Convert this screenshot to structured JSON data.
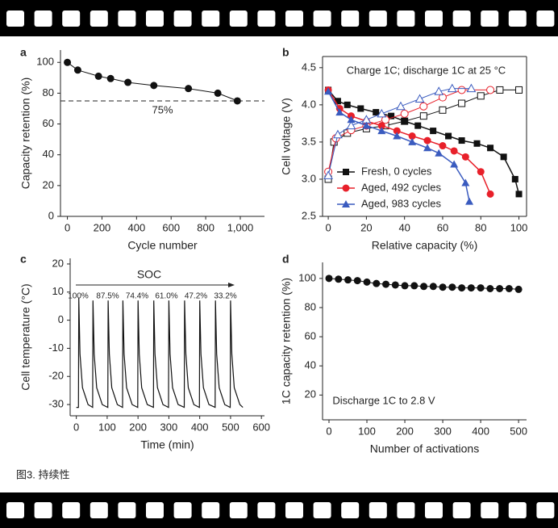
{
  "caption": "图3. 持续性",
  "chart_data": [
    {
      "type": "line",
      "label": "a",
      "xlabel": "Cycle number",
      "ylabel": "Capacity retention (%)",
      "x": [
        0,
        60,
        180,
        250,
        350,
        500,
        700,
        870,
        983
      ],
      "values": [
        100,
        95,
        91,
        89.5,
        87,
        85,
        83,
        80,
        75
      ],
      "color": "#111111",
      "marker": "circle",
      "reference_line": {
        "value": 75,
        "label": "75%"
      },
      "xlim": [
        -40,
        1140
      ],
      "ylim": [
        0,
        108
      ],
      "xticks": [
        0,
        200,
        400,
        600,
        800,
        {
          "value": 1000,
          "label": "1,000"
        }
      ],
      "yticks": [
        0,
        20,
        40,
        60,
        80,
        100
      ]
    },
    {
      "type": "line",
      "label": "b",
      "xlabel": "Relative capacity (%)",
      "ylabel": "Cell voltage (V)",
      "annotation": "Charge 1C; discharge 1C at 25 °C",
      "box": true,
      "legend": "lower left",
      "series": [
        {
          "name": "Fresh, 0 cycles",
          "color": "#111111",
          "marker": "square",
          "discharge": {
            "x": [
              0,
              5,
              10,
              17,
              25,
              33,
              40,
              47,
              55,
              63,
              70,
              78,
              85,
              92,
              98,
              100
            ],
            "values": [
              4.2,
              4.05,
              4.0,
              3.95,
              3.9,
              3.85,
              3.78,
              3.72,
              3.65,
              3.58,
              3.52,
              3.48,
              3.42,
              3.3,
              3.0,
              2.8
            ]
          },
          "charge": {
            "x": [
              0,
              3,
              10,
              20,
              30,
              40,
              50,
              60,
              70,
              80,
              90,
              100
            ],
            "values": [
              3.0,
              3.5,
              3.62,
              3.68,
              3.72,
              3.78,
              3.85,
              3.93,
              4.02,
              4.12,
              4.2,
              4.2
            ]
          }
        },
        {
          "name": "Aged, 492 cycles",
          "color": "#e8202a",
          "marker": "circle",
          "discharge": {
            "x": [
              0,
              6,
              12,
              20,
              28,
              36,
              44,
              52,
              60,
              66,
              72,
              80,
              85
            ],
            "values": [
              4.2,
              3.95,
              3.85,
              3.78,
              3.72,
              3.65,
              3.58,
              3.52,
              3.45,
              3.38,
              3.3,
              3.1,
              2.8
            ]
          },
          "charge": {
            "x": [
              0,
              4,
              12,
              20,
              30,
              40,
              50,
              60,
              70,
              85
            ],
            "values": [
              3.1,
              3.55,
              3.66,
              3.72,
              3.8,
              3.88,
              3.98,
              4.1,
              4.2,
              4.2
            ]
          }
        },
        {
          "name": "Aged, 983 cycles",
          "color": "#3a5bbf",
          "marker": "triangle",
          "discharge": {
            "x": [
              0,
              6,
              12,
              20,
              28,
              36,
              44,
              52,
              58,
              66,
              72,
              74
            ],
            "values": [
              4.18,
              3.9,
              3.8,
              3.72,
              3.65,
              3.58,
              3.5,
              3.42,
              3.35,
              3.2,
              2.95,
              2.7
            ]
          },
          "charge": {
            "x": [
              0,
              5,
              12,
              20,
              28,
              38,
              48,
              58,
              65,
              75
            ],
            "values": [
              3.05,
              3.6,
              3.72,
              3.8,
              3.88,
              3.98,
              4.08,
              4.18,
              4.22,
              4.22
            ]
          }
        }
      ],
      "xlim": [
        -3,
        104
      ],
      "ylim": [
        2.5,
        4.65
      ],
      "xticks": [
        0,
        20,
        40,
        60,
        80,
        100
      ],
      "yticks": [
        2.5,
        {
          "value": 3,
          "label": "3.0"
        },
        3.5,
        {
          "value": 4,
          "label": "4.0"
        },
        4.5
      ]
    },
    {
      "type": "line",
      "label": "c",
      "xlabel": "Time (min)",
      "ylabel": "Cell temperature (°C)",
      "annotation": "SOC",
      "soc_labels": [
        "100%",
        "87.5%",
        "74.4%",
        "61.0%",
        "47.2%",
        "33.2%"
      ],
      "x": [
        0,
        7,
        8,
        12,
        20,
        38,
        53,
        54,
        58,
        66,
        84,
        102,
        103,
        107,
        115,
        133,
        150,
        151,
        155,
        163,
        181,
        199,
        200,
        204,
        212,
        230,
        250,
        251,
        255,
        263,
        281,
        299,
        300,
        304,
        312,
        330,
        350,
        351,
        355,
        363,
        381,
        399,
        400,
        404,
        412,
        430,
        450,
        451,
        455,
        463,
        481,
        499,
        500,
        504,
        512,
        530,
        540
      ],
      "values": [
        -31,
        -31,
        8,
        -12,
        -24,
        -30,
        -31,
        7,
        -12,
        -24,
        -30,
        -31,
        7,
        -12,
        -24,
        -30,
        -31,
        7,
        -12,
        -24,
        -30,
        -31,
        7,
        -12,
        -24,
        -30,
        -31,
        7,
        -12,
        -24,
        -30,
        -31,
        7,
        -12,
        -24,
        -30,
        -31,
        7,
        -12,
        -24,
        -30,
        -31,
        7,
        -12,
        -24,
        -30,
        -31,
        7,
        -12,
        -24,
        -30,
        -31,
        7,
        -12,
        -24,
        -30,
        -31
      ],
      "color": "#111111",
      "xlim": [
        -20,
        610
      ],
      "ylim": [
        -34,
        22
      ],
      "xticks": [
        0,
        100,
        200,
        300,
        400,
        500,
        600
      ],
      "yticks": [
        -30,
        -20,
        -10,
        0,
        10,
        20
      ]
    },
    {
      "type": "line",
      "label": "d",
      "xlabel": "Number of activations",
      "ylabel": "1C capacity retention (%)",
      "annotation": "Discharge 1C to 2.8 V",
      "x": [
        0,
        25,
        50,
        75,
        100,
        125,
        150,
        175,
        200,
        225,
        250,
        275,
        300,
        325,
        350,
        375,
        400,
        425,
        450,
        475,
        500
      ],
      "values": [
        100,
        99.5,
        99,
        98.5,
        97.5,
        96.5,
        96,
        95.5,
        95,
        95,
        94.5,
        94.5,
        94,
        94,
        93.5,
        93.5,
        93.5,
        93,
        93,
        93,
        92.5
      ],
      "color": "#111111",
      "marker": "circle",
      "xlim": [
        -17,
        521
      ],
      "ylim": [
        3,
        111
      ],
      "xticks": [
        0,
        100,
        200,
        300,
        400,
        500
      ],
      "yticks": [
        20,
        40,
        60,
        80,
        100
      ]
    }
  ]
}
